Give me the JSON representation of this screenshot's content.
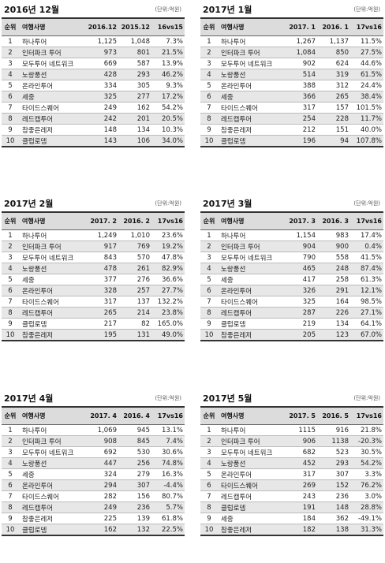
{
  "unit_label": "(단위:억원)",
  "panels": [
    {
      "title": "2016년 12월",
      "headers": [
        "순위",
        "여행사명",
        "2016.12",
        "2015.12",
        "16vs15"
      ],
      "rows": [
        [
          "1",
          "하나투어",
          "1,125",
          "1,048",
          "7.3%"
        ],
        [
          "2",
          "인터파크 투어",
          "973",
          "801",
          "21.5%"
        ],
        [
          "3",
          "모두투어 네트워크",
          "669",
          "587",
          "13.9%"
        ],
        [
          "4",
          "노랑풍선",
          "428",
          "293",
          "46.2%"
        ],
        [
          "5",
          "온라인투어",
          "334",
          "305",
          "9.3%"
        ],
        [
          "6",
          "세중",
          "325",
          "277",
          "17.2%"
        ],
        [
          "7",
          "타이드스퀘어",
          "249",
          "162",
          "54.2%"
        ],
        [
          "8",
          "레드캡투어",
          "242",
          "201",
          "20.5%"
        ],
        [
          "9",
          "참좋은레저",
          "148",
          "134",
          "10.3%"
        ],
        [
          "10",
          "클럽로뎀",
          "143",
          "106",
          "34.0%"
        ]
      ]
    },
    {
      "title": "2017년 1월",
      "headers": [
        "순위",
        "여행사명",
        "2017. 1",
        "2016. 1",
        "17vs16"
      ],
      "rows": [
        [
          "1",
          "하나투어",
          "1,267",
          "1,137",
          "11.5%"
        ],
        [
          "2",
          "인터파크 투어",
          "1,084",
          "850",
          "27.5%"
        ],
        [
          "3",
          "모두투어 네트워크",
          "902",
          "624",
          "44.6%"
        ],
        [
          "4",
          "노랑풍선",
          "514",
          "319",
          "61.5%"
        ],
        [
          "5",
          "온라인투어",
          "388",
          "312",
          "24.4%"
        ],
        [
          "6",
          "세중",
          "366",
          "265",
          "38.4%"
        ],
        [
          "7",
          "타이드스퀘어",
          "317",
          "157",
          "101.5%"
        ],
        [
          "8",
          "레드캡투어",
          "254",
          "228",
          "11.7%"
        ],
        [
          "9",
          "참좋은레저",
          "212",
          "151",
          "40.0%"
        ],
        [
          "10",
          "클럽로뎀",
          "196",
          "94",
          "107.8%"
        ]
      ]
    },
    {
      "title": "2017년 2월",
      "headers": [
        "순위",
        "여행사명",
        "2017. 2",
        "2016. 2",
        "17vs16"
      ],
      "rows": [
        [
          "1",
          "하나투어",
          "1,249",
          "1,010",
          "23.6%"
        ],
        [
          "2",
          "인터파크 투어",
          "917",
          "769",
          "19.2%"
        ],
        [
          "3",
          "모두투어 네트워크",
          "843",
          "570",
          "47.8%"
        ],
        [
          "4",
          "노랑풍선",
          "478",
          "261",
          "82.9%"
        ],
        [
          "5",
          "세중",
          "377",
          "276",
          "36.6%"
        ],
        [
          "6",
          "온라인투어",
          "328",
          "257",
          "27.7%"
        ],
        [
          "7",
          "타이드스퀘어",
          "317",
          "137",
          "132.2%"
        ],
        [
          "8",
          "레드캡투어",
          "265",
          "214",
          "23.8%"
        ],
        [
          "9",
          "클럽로뎀",
          "217",
          "82",
          "165.0%"
        ],
        [
          "10",
          "참좋은레저",
          "195",
          "131",
          "49.0%"
        ]
      ]
    },
    {
      "title": "2017년 3월",
      "headers": [
        "순위",
        "여행사명",
        "2017. 3",
        "2016. 3",
        "17vs16"
      ],
      "rows": [
        [
          "1",
          "하나투어",
          "1,154",
          "983",
          "17.4%"
        ],
        [
          "2",
          "인터파크 투어",
          "904",
          "900",
          "0.4%"
        ],
        [
          "3",
          "모두투어 네트워크",
          "790",
          "558",
          "41.5%"
        ],
        [
          "4",
          "노랑풍선",
          "465",
          "248",
          "87.4%"
        ],
        [
          "5",
          "세중",
          "417",
          "258",
          "61.3%"
        ],
        [
          "6",
          "온라인투어",
          "326",
          "291",
          "12.1%"
        ],
        [
          "7",
          "타이드스퀘어",
          "325",
          "164",
          "98.5%"
        ],
        [
          "8",
          "레드캡투어",
          "287",
          "226",
          "27.1%"
        ],
        [
          "9",
          "클럽로뎀",
          "219",
          "134",
          "64.1%"
        ],
        [
          "10",
          "참좋은레저",
          "205",
          "123",
          "67.0%"
        ]
      ]
    },
    {
      "title": "2017년 4월",
      "headers": [
        "순위",
        "여행사명",
        "2017. 4",
        "2016. 4",
        "17vs16"
      ],
      "rows": [
        [
          "1",
          "하나투어",
          "1,069",
          "945",
          "13.1%"
        ],
        [
          "2",
          "인터파크 투어",
          "908",
          "845",
          "7.4%"
        ],
        [
          "3",
          "모두투어 네트워크",
          "692",
          "530",
          "30.6%"
        ],
        [
          "4",
          "노랑풍선",
          "447",
          "256",
          "74.8%"
        ],
        [
          "5",
          "세중",
          "324",
          "279",
          "16.3%"
        ],
        [
          "6",
          "온라인투어",
          "294",
          "307",
          "-4.4%"
        ],
        [
          "7",
          "타이드스퀘어",
          "282",
          "156",
          "80.7%"
        ],
        [
          "8",
          "레드캡투어",
          "249",
          "236",
          "5.7%"
        ],
        [
          "9",
          "참좋은레저",
          "225",
          "139",
          "61.8%"
        ],
        [
          "10",
          "클럽로뎀",
          "162",
          "132",
          "22.5%"
        ]
      ]
    },
    {
      "title": "2017년 5월",
      "headers": [
        "순위",
        "여행사명",
        "2017. 5",
        "2016. 5",
        "17vs16"
      ],
      "rows": [
        [
          "1",
          "하나투어",
          "1115",
          "916",
          "21.8%"
        ],
        [
          "2",
          "인터파크 투어",
          "906",
          "1138",
          "-20.3%"
        ],
        [
          "3",
          "모두투어 네트워크",
          "682",
          "523",
          "30.5%"
        ],
        [
          "4",
          "노랑풍선",
          "452",
          "293",
          "54.2%"
        ],
        [
          "5",
          "온라인투어",
          "317",
          "307",
          "3.3%"
        ],
        [
          "6",
          "타이드스퀘어",
          "269",
          "152",
          "76.2%"
        ],
        [
          "7",
          "레드캡투어",
          "243",
          "236",
          "3.0%"
        ],
        [
          "8",
          "클럽로뎀",
          "191",
          "148",
          "28.8%"
        ],
        [
          "9",
          "세중",
          "184",
          "362",
          "-49.1%"
        ],
        [
          "10",
          "참좋은레저",
          "182",
          "138",
          "31.3%"
        ]
      ]
    }
  ]
}
